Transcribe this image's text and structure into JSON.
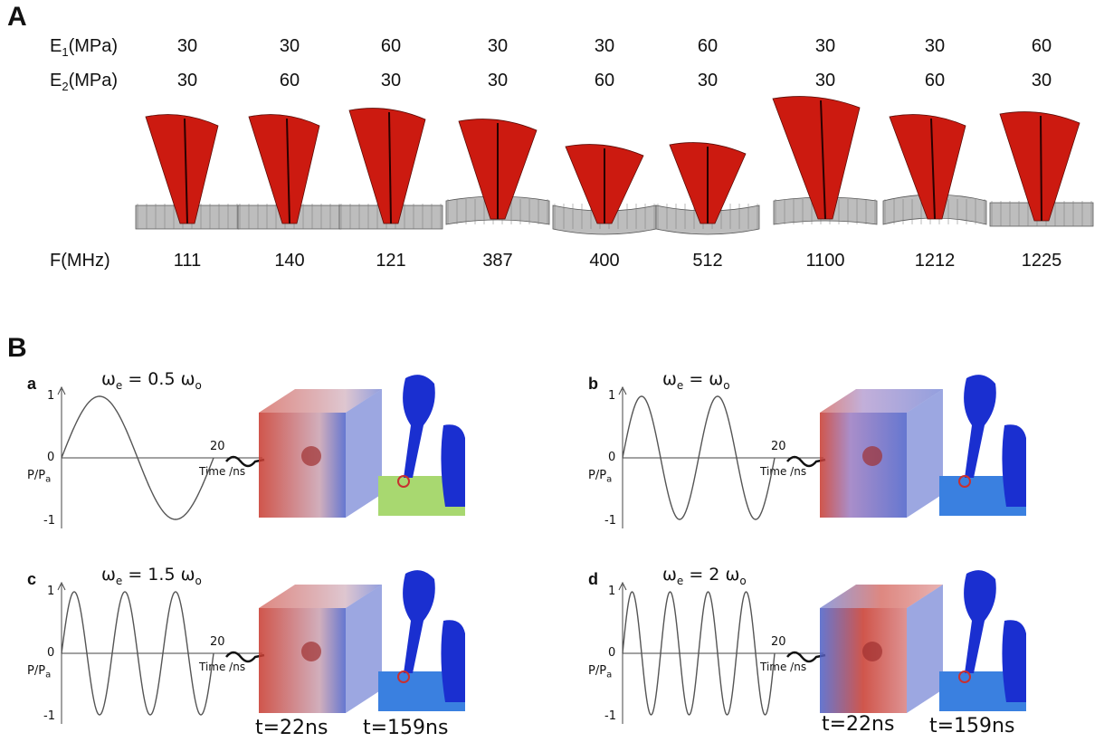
{
  "panelA": {
    "letter": "A",
    "e1_label": "E",
    "e1_sub": "1",
    "e1_unit": "(MPa)",
    "e2_label": "E",
    "e2_sub": "2",
    "e2_unit": "(MPa)",
    "f_label": "F(MHz)",
    "columns": [
      {
        "e1": "30",
        "e2": "30",
        "f": "111"
      },
      {
        "e1": "30",
        "e2": "60",
        "f": "140"
      },
      {
        "e1": "60",
        "e2": "30",
        "f": "121"
      },
      {
        "e1": "30",
        "e2": "30",
        "f": "387"
      },
      {
        "e1": "30",
        "e2": "60",
        "f": "400"
      },
      {
        "e1": "60",
        "e2": "30",
        "f": "512"
      },
      {
        "e1": "30",
        "e2": "30",
        "f": "1100"
      },
      {
        "e1": "30",
        "e2": "60",
        "f": "1212"
      },
      {
        "e1": "60",
        "e2": "30",
        "f": "1225"
      }
    ],
    "colors": {
      "stereocilia": "#cc1a10",
      "mesh": "#bdbdbd"
    }
  },
  "panelB": {
    "letter": "B",
    "axis": {
      "y_top": "1",
      "y_zero": "0",
      "y_bottom": "-1",
      "time_tick": "20",
      "time_label": "Time /ns",
      "p_label": "P/P",
      "p_sub": "a"
    },
    "subplots": [
      {
        "letter": "a",
        "omega_e": "ω",
        "omega_sub": "e",
        "eq": " =  0.5 ω",
        "omega_o_sub": "o",
        "cycles": 1
      },
      {
        "letter": "b",
        "omega_e": "ω",
        "omega_sub": "e",
        "eq": " =  ω",
        "omega_o_sub": "o",
        "cycles": 2
      },
      {
        "letter": "c",
        "omega_e": "ω",
        "omega_sub": "e",
        "eq": " =  1.5 ω",
        "omega_o_sub": "o",
        "cycles": 3
      },
      {
        "letter": "d",
        "omega_e": "ω",
        "omega_sub": "e",
        "eq": " =  2 ω",
        "omega_o_sub": "o",
        "cycles": 4
      }
    ],
    "time_labels": {
      "t1": "t=22ns",
      "t2": "t=159ns"
    },
    "colors": {
      "cube_red": "#c8382c",
      "cube_blue": "#4a5fc8",
      "cilia_blue": "#1a2fd0",
      "ring": "#c83030"
    }
  }
}
